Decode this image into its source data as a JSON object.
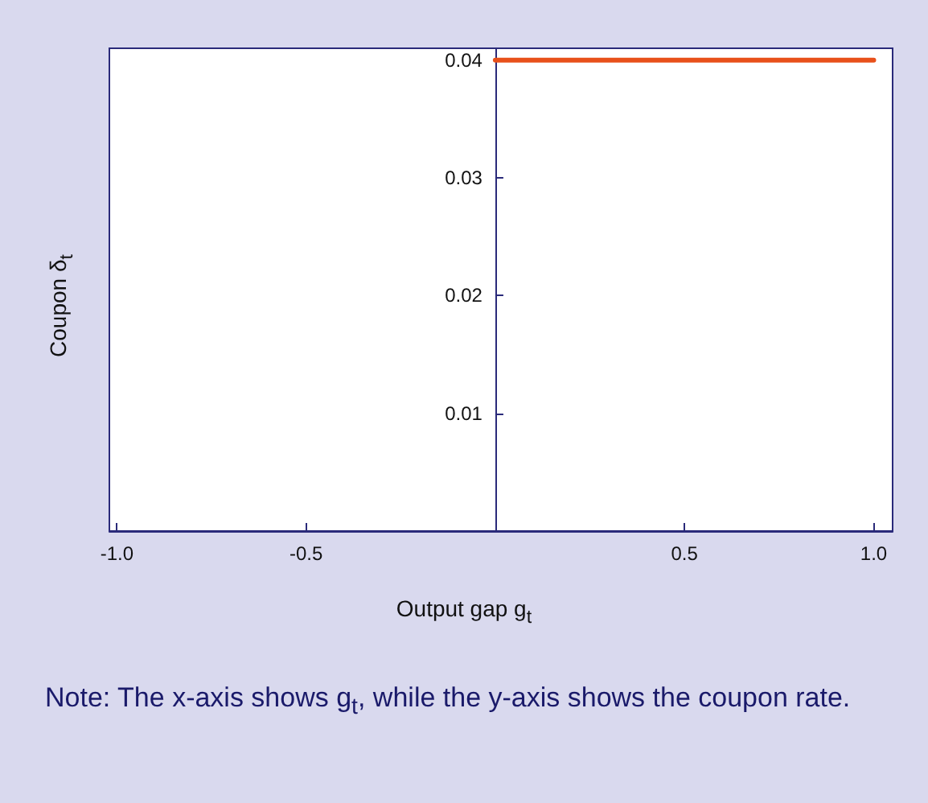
{
  "chart_data": {
    "type": "line",
    "xlabel": "Output gap g$_{t}$",
    "ylabel": "Coupon δ$_{t}$",
    "annotations": [
      "Note: The x-axis shows g$_{t}$, while the y-axis shows the coupon rate."
    ],
    "x": [
      0,
      1
    ],
    "series": [
      {
        "color": "#e8501a",
        "values": [
          0.04,
          0.04
        ]
      }
    ],
    "xlim": [
      -1.02,
      1.05
    ],
    "xticks": [
      {
        "value": -1,
        "label": "-1.0"
      },
      -0.5,
      {
        "value": 0,
        "label": null
      },
      0.5,
      {
        "value": 1,
        "label": "1.0"
      }
    ],
    "ylim": [
      0,
      0.041
    ],
    "yticks": [
      0.01,
      0.02,
      0.03,
      0.04
    ],
    "grid": false,
    "marker": "none",
    "line_style": "solid"
  }
}
